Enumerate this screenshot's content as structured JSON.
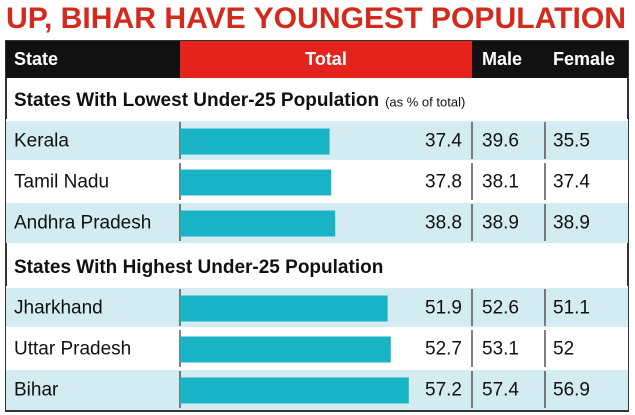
{
  "title": "UP, BIHAR HAVE YOUNGEST POPULATION",
  "columns": [
    "State",
    "Total",
    "Male",
    "Female"
  ],
  "sections": [
    {
      "heading": "States With Lowest Under-25 Population",
      "note": "(as % of total)",
      "rows": [
        {
          "state": "Kerala",
          "total": 37.4,
          "male": 39.6,
          "female": 35.5
        },
        {
          "state": "Tamil Nadu",
          "total": 37.8,
          "male": 38.1,
          "female": 37.4
        },
        {
          "state": "Andhra Pradesh",
          "total": 38.8,
          "male": 38.9,
          "female": 38.9
        }
      ]
    },
    {
      "heading": "States With Highest Under-25 Population",
      "rows": [
        {
          "state": "Jharkhand",
          "total": 51.9,
          "male": 52.6,
          "female": 51.1
        },
        {
          "state": "Uttar Pradesh",
          "total": 52.7,
          "male": 53.1,
          "female": 52
        },
        {
          "state": "Bihar",
          "total": 57.2,
          "male": 57.4,
          "female": 56.9
        }
      ]
    }
  ]
}
